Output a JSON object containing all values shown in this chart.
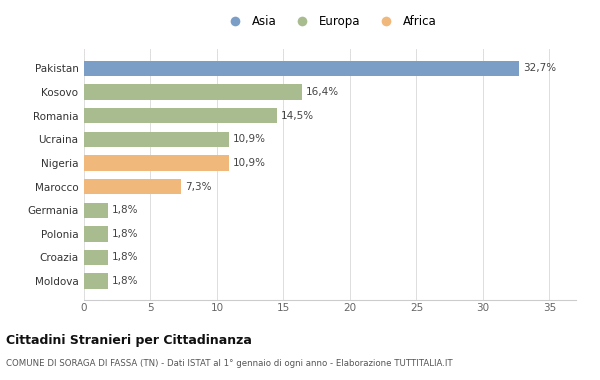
{
  "countries": [
    "Moldova",
    "Croazia",
    "Polonia",
    "Germania",
    "Marocco",
    "Nigeria",
    "Ucraina",
    "Romania",
    "Kosovo",
    "Pakistan"
  ],
  "values": [
    1.8,
    1.8,
    1.8,
    1.8,
    7.3,
    10.9,
    10.9,
    14.5,
    16.4,
    32.7
  ],
  "labels": [
    "1,8%",
    "1,8%",
    "1,8%",
    "1,8%",
    "7,3%",
    "10,9%",
    "10,9%",
    "14,5%",
    "16,4%",
    "32,7%"
  ],
  "colors": [
    "#a8bc8f",
    "#a8bc8f",
    "#a8bc8f",
    "#a8bc8f",
    "#f0b87a",
    "#f0b87a",
    "#a8bc8f",
    "#a8bc8f",
    "#a8bc8f",
    "#7b9ec7"
  ],
  "legend": [
    {
      "label": "Asia",
      "color": "#7b9ec7"
    },
    {
      "label": "Europa",
      "color": "#a8bc8f"
    },
    {
      "label": "Africa",
      "color": "#f0b87a"
    }
  ],
  "title": "Cittadini Stranieri per Cittadinanza",
  "subtitle": "COMUNE DI SORAGA DI FASSA (TN) - Dati ISTAT al 1° gennaio di ogni anno - Elaborazione TUTTITALIA.IT",
  "xlim": [
    0,
    37
  ],
  "xticks": [
    0,
    5,
    10,
    15,
    20,
    25,
    30,
    35
  ],
  "background_color": "#ffffff",
  "bar_height": 0.65
}
